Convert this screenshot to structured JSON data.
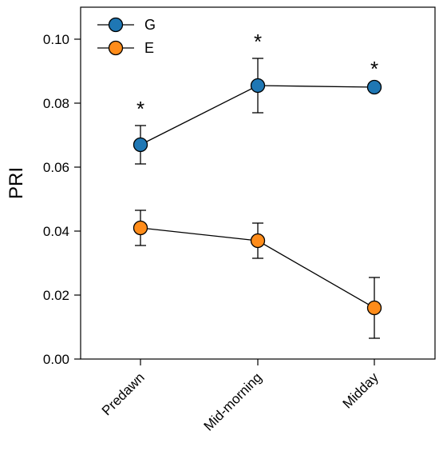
{
  "chart_data": {
    "type": "line",
    "title": "",
    "xlabel": "",
    "ylabel": "PRI",
    "categories": [
      "Predawn",
      "Mid-morning",
      "Midday"
    ],
    "ylim": [
      0.0,
      0.11
    ],
    "yticks": [
      0.0,
      0.02,
      0.04,
      0.06,
      0.08,
      0.1
    ],
    "ytick_labels": [
      "0.00",
      "0.02",
      "0.04",
      "0.06",
      "0.08",
      "0.10"
    ],
    "grid": false,
    "legend_position": "top-left",
    "series": [
      {
        "name": "G",
        "color": "#1f77b4",
        "values": [
          0.067,
          0.0855,
          0.085
        ],
        "error": [
          0.006,
          0.0085,
          0.0005
        ],
        "annotations": [
          "*",
          "*",
          "*"
        ]
      },
      {
        "name": "E",
        "color": "#ff8c1a",
        "values": [
          0.041,
          0.037,
          0.016
        ],
        "error": [
          0.0055,
          0.0055,
          0.0095
        ],
        "annotations": [
          "",
          "",
          ""
        ]
      }
    ]
  }
}
